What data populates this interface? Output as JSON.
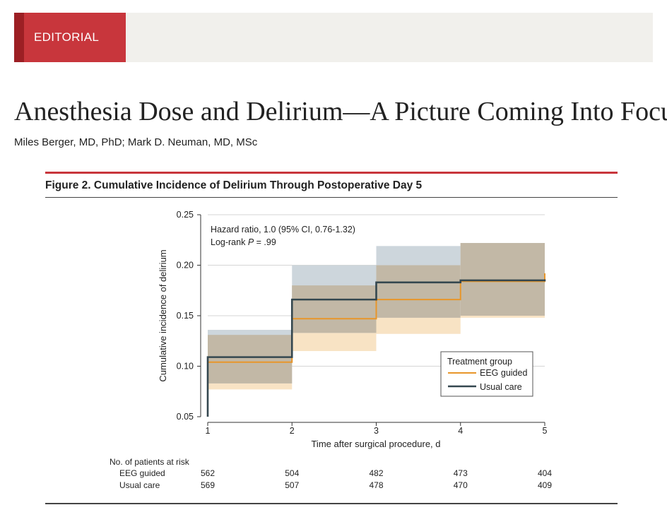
{
  "banner": {
    "label": "EDITORIAL"
  },
  "article": {
    "title": "Anesthesia Dose and Delirium—A Picture Coming Into Focus",
    "authors": "Miles Berger, MD, PhD; Mark D. Neuman, MD, MSc"
  },
  "figure": {
    "caption": "Figure 2. Cumulative Incidence of Delirium Through Postoperative Day 5"
  },
  "chart_data": {
    "type": "line",
    "title": "Cumulative Incidence of Delirium Through Postoperative Day 5",
    "xlabel": "Time after surgical procedure, d",
    "ylabel": "Cumulative incidence of delirium",
    "xlim": [
      1,
      5
    ],
    "ylim": [
      0.05,
      0.25
    ],
    "xticks": [
      "1",
      "2",
      "3",
      "4",
      "5"
    ],
    "yticks": [
      "0.05",
      "0.10",
      "0.15",
      "0.20",
      "0.25"
    ],
    "grid": true,
    "annotation_line1": "Hazard ratio, 1.0 (95% CI, 0.76-1.32)",
    "annotation_line2_prefix": "Log-rank ",
    "annotation_line2_p": "P",
    "annotation_line2_suffix": " = .99",
    "legend_title": "Treatment group",
    "legend_position": "bottom-right",
    "series": [
      {
        "name": "EEG guided",
        "color": "#e8962a",
        "step_x": [
          1,
          2,
          3,
          4,
          5
        ],
        "values": [
          0.104,
          0.147,
          0.166,
          0.184,
          0.192
        ],
        "ci_lower": [
          0.077,
          0.115,
          0.132,
          0.148
        ],
        "ci_upper": [
          0.131,
          0.18,
          0.2,
          0.222
        ]
      },
      {
        "name": "Usual care",
        "color": "#34474f",
        "step_x": [
          1,
          2,
          3,
          4,
          5
        ],
        "values": [
          0.109,
          0.166,
          0.183,
          0.185,
          0.186
        ],
        "ci_lower": [
          0.083,
          0.133,
          0.148,
          0.15
        ],
        "ci_upper": [
          0.136,
          0.2,
          0.219,
          0.222
        ]
      }
    ]
  },
  "risk_table": {
    "title": "No. of patients at risk",
    "rows": [
      {
        "label": "EEG guided",
        "values": [
          "562",
          "504",
          "482",
          "473",
          "404"
        ]
      },
      {
        "label": "Usual care",
        "values": [
          "569",
          "507",
          "478",
          "470",
          "409"
        ]
      }
    ]
  }
}
